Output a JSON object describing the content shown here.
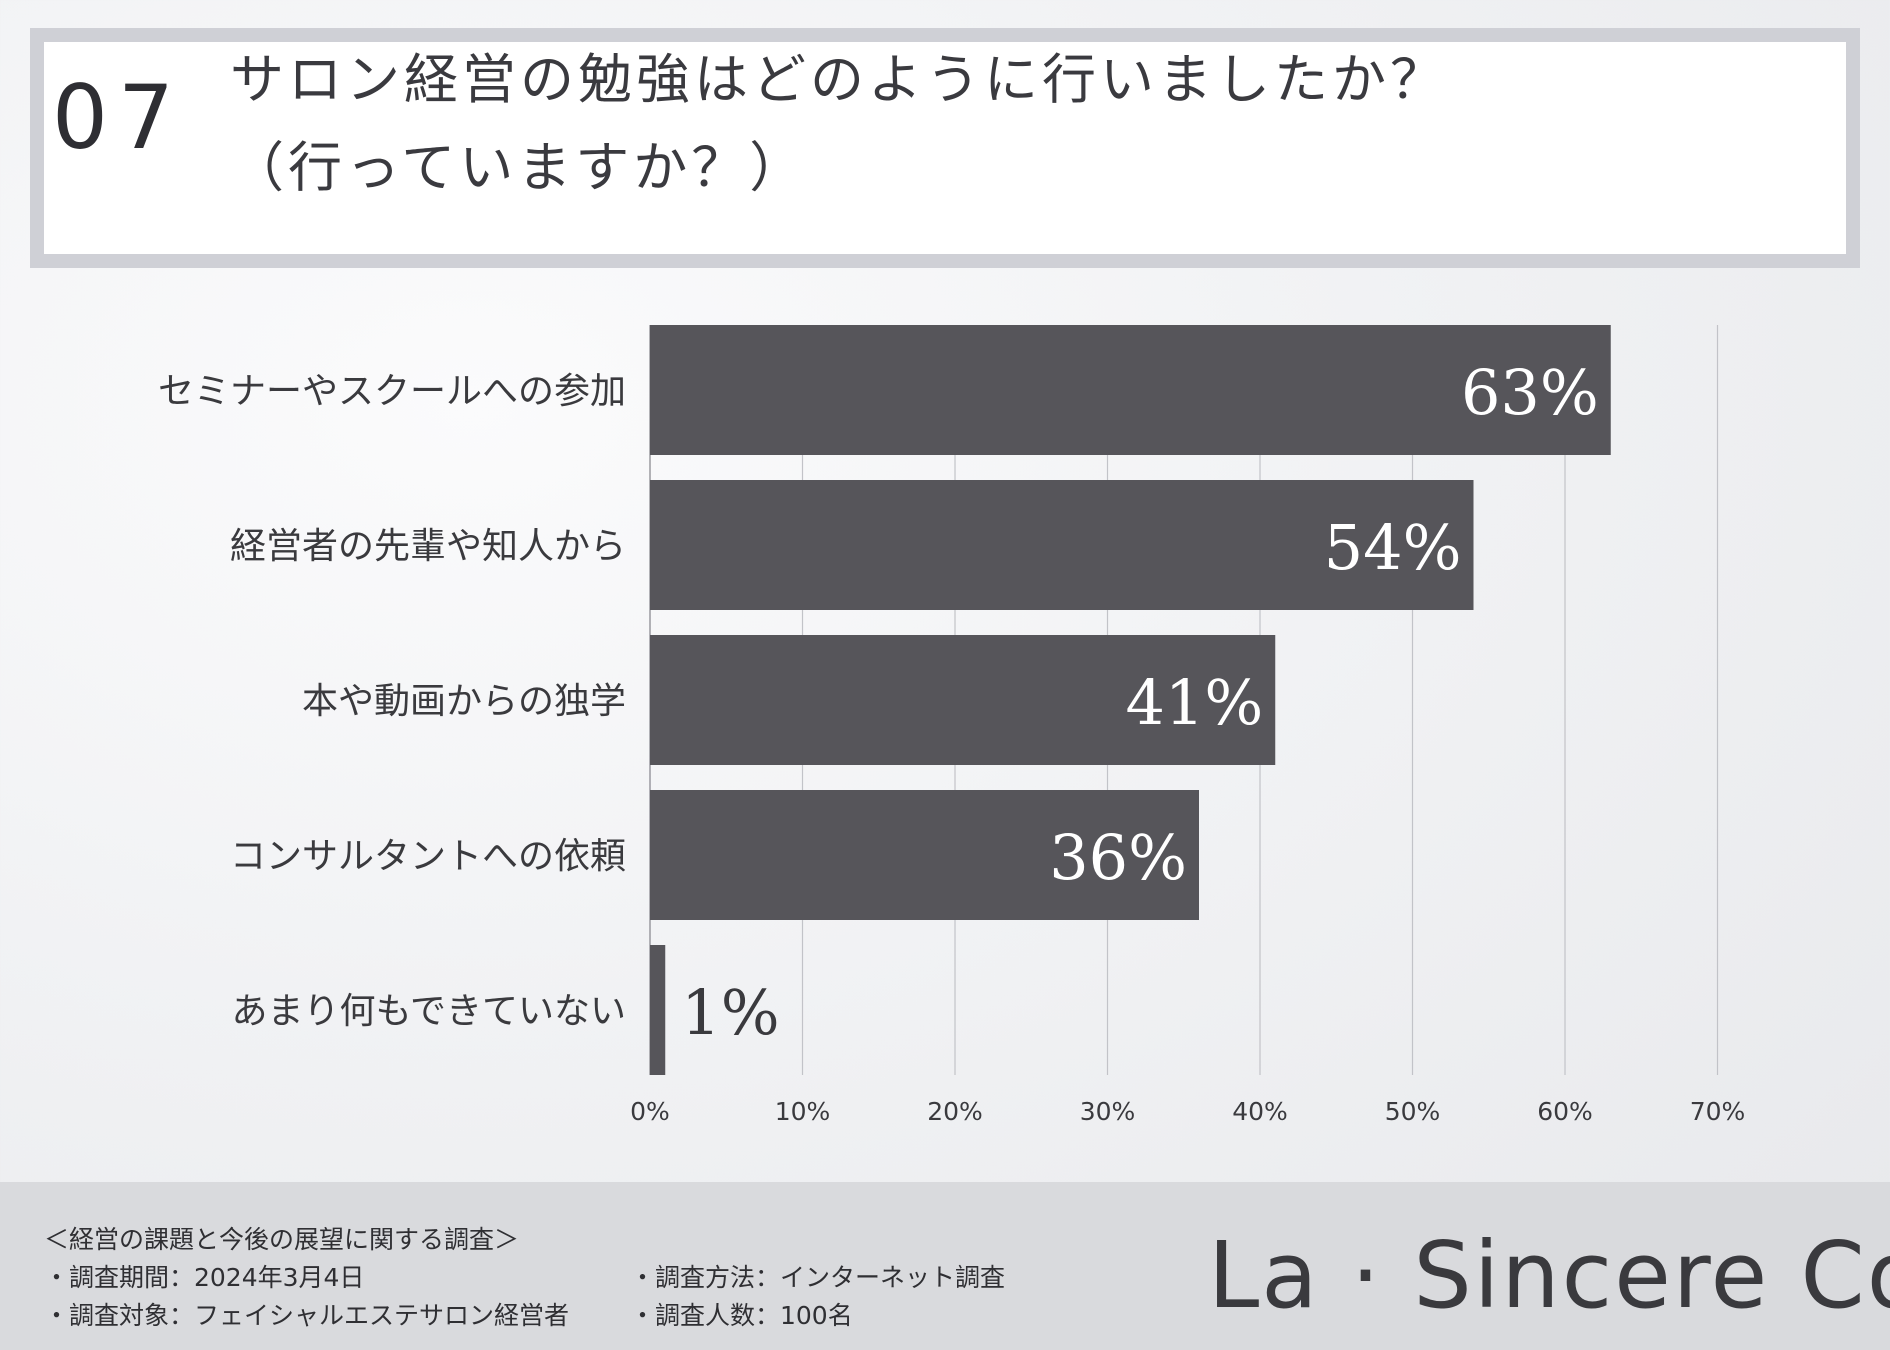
{
  "header": {
    "number": "07",
    "title_line1": "サロン経営の勉強はどのように行いましたか？",
    "title_line2": "（行っていますか？）"
  },
  "chart_data": {
    "type": "bar",
    "orientation": "horizontal",
    "categories": [
      "セミナーやスクールへの参加",
      "経営者の先輩や知人から",
      "本や動画からの独学",
      "コンサルタントへの依頼",
      "あまり何もできていない"
    ],
    "values": [
      63,
      54,
      41,
      36,
      1
    ],
    "value_labels": [
      "63%",
      "54%",
      "41%",
      "36%",
      "1%"
    ],
    "xlim": [
      0,
      70
    ],
    "xticks": [
      "0%",
      "10%",
      "20%",
      "30%",
      "40%",
      "50%",
      "60%",
      "70%"
    ],
    "grid": true,
    "bar_color": "#56555a",
    "label_color_inside": "#ffffff",
    "label_color_outside": "#3a3a3e"
  },
  "footer": {
    "survey_title": "＜経営の課題と今後の展望に関する調査＞",
    "details": [
      "・調査期間：2024年3月4日",
      "・調査方法：インターネット調査",
      "・調査対象：フェイシャルエステサロン経営者",
      "・調査人数：100名"
    ],
    "logo": "La · Sincere Co."
  }
}
